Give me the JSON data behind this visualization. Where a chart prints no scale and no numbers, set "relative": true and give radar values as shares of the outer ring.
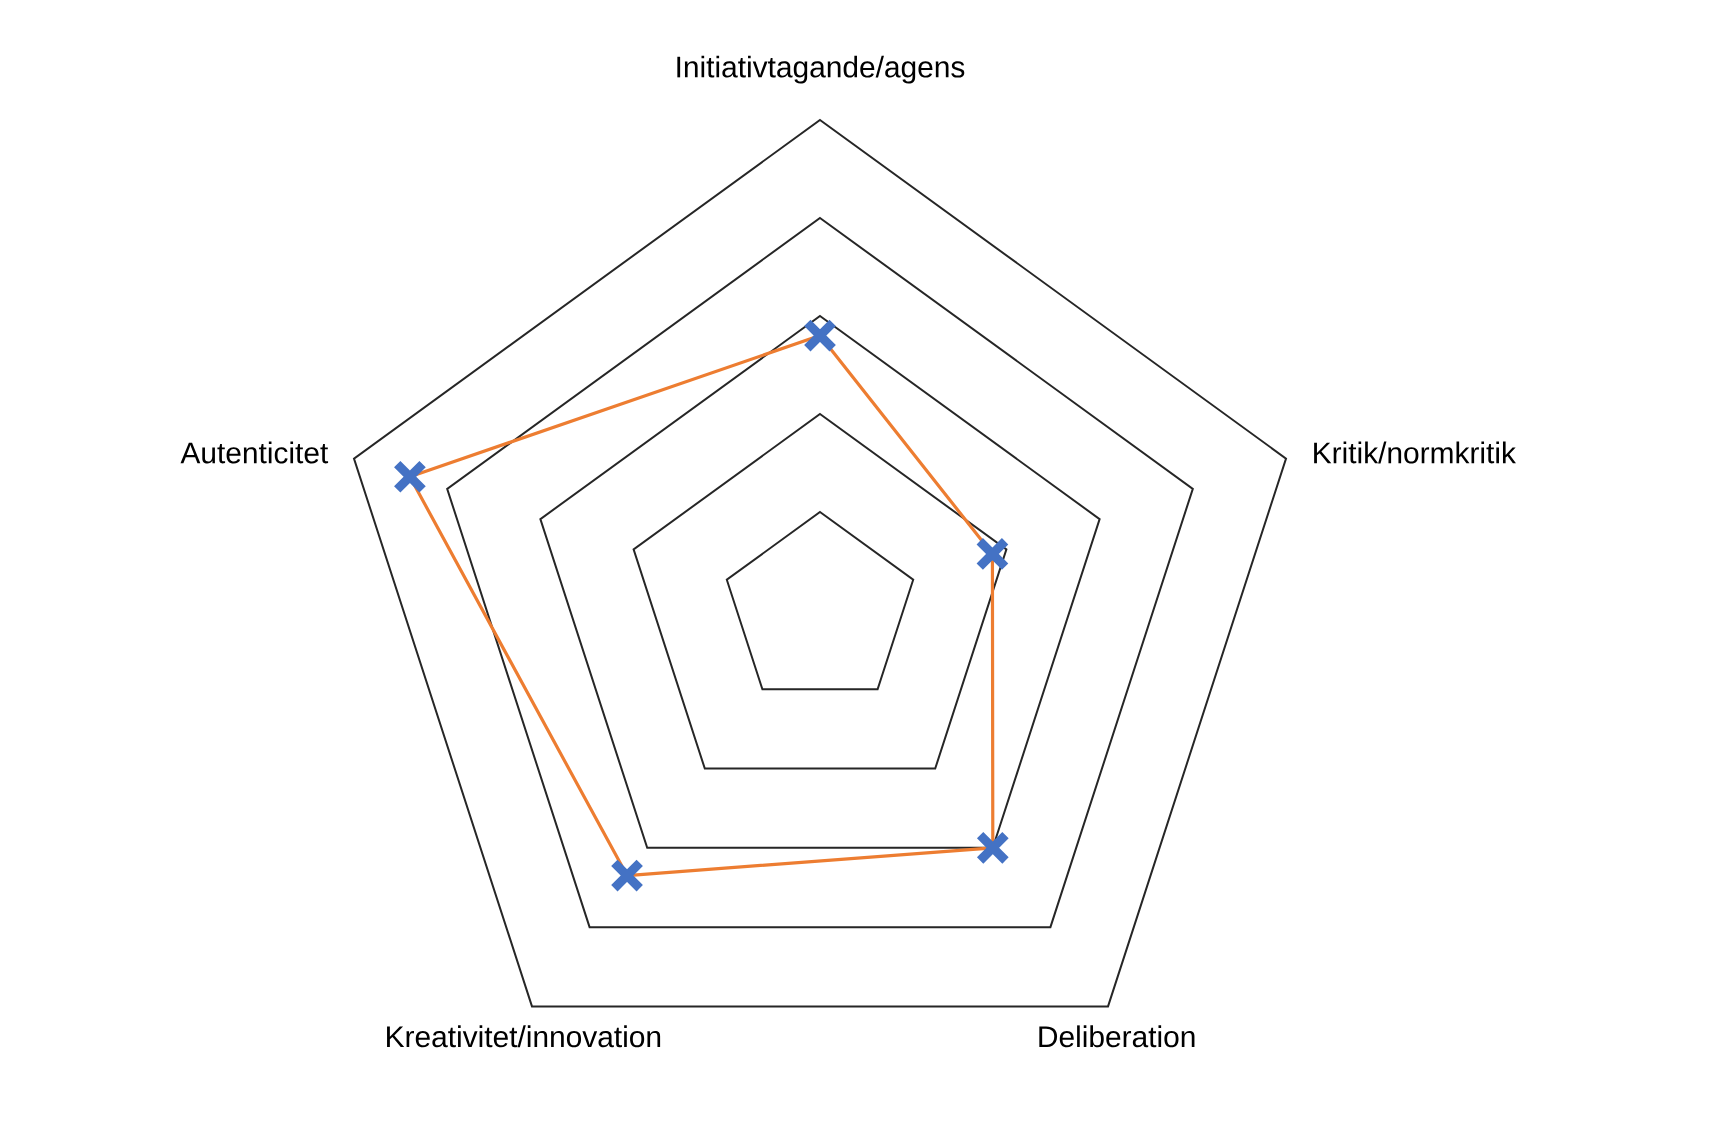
{
  "chart_data": {
    "type": "radar",
    "relative": true,
    "grid": true,
    "marker": "cross",
    "categories": [
      "Initiativtagande/agens",
      "Kritik/normkritik",
      "Deliberation",
      "Kreativitet/innovation",
      "Autenticitet"
    ],
    "series": [
      {
        "color": "#ed7d31",
        "colors": [
          "#4472c4",
          "#4472c4",
          "#4472c4",
          "#4472c4",
          "#4472c4"
        ],
        "values": [
          0.56,
          0.37,
          0.6,
          0.67,
          0.88
        ]
      }
    ]
  }
}
